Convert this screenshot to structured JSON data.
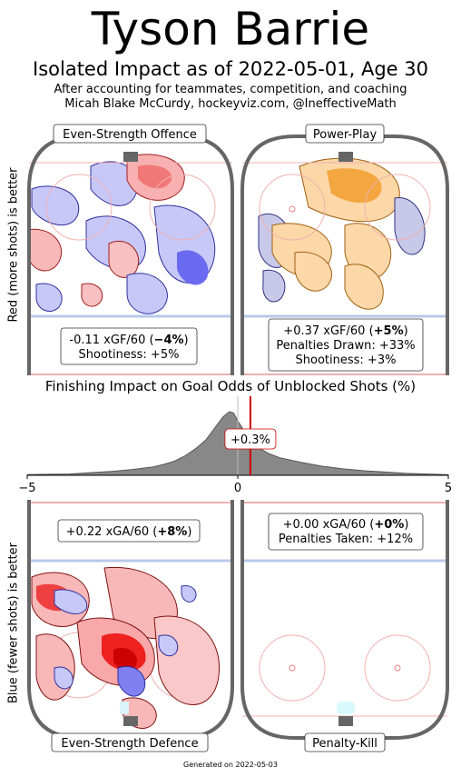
{
  "header": {
    "player_name": "Tyson Barrie",
    "subtitle": "Isolated Impact as of 2022-05-01, Age 30",
    "note_line1": "After accounting for teammates, competition, and coaching",
    "note_line2": "Micah Blake McCurdy, hockeyviz.com, @IneffectiveMath"
  },
  "axis_labels": {
    "top": "Red (more shots) is better",
    "bottom": "Blue (fewer shots) is better"
  },
  "colors": {
    "offence_red": "#f08080",
    "offence_blue": "#6060f0",
    "powerplay_orange": "#f4a640",
    "powerplay_purple": "#9090c8",
    "defence_red": "#ee3030",
    "defence_blue": "#5050e0",
    "rink_border": "#666666",
    "finish_fill": "#888888",
    "finish_marker": "#cc0000"
  },
  "panels": {
    "es_offence": {
      "label": "Even-Strength Offence",
      "stat1_prefix": "-0.11 xGF/60 (",
      "stat1_bold": "−4%",
      "stat1_suffix": ")",
      "stat2": "Shootiness: +5%"
    },
    "power_play": {
      "label": "Power-Play",
      "stat1_prefix": "+0.37 xGF/60 (",
      "stat1_bold": "+5%",
      "stat1_suffix": ")",
      "stat2": "Penalties Drawn: +33%",
      "stat3": "Shootiness: +3%"
    },
    "es_defence": {
      "label": "Even-Strength Defence",
      "stat1_prefix": "+0.22 xGA/60 (",
      "stat1_bold": "+8%",
      "stat1_suffix": ")"
    },
    "penalty_kill": {
      "label": "Penalty-Kill",
      "stat1_prefix": "+0.00 xGA/60 (",
      "stat1_bold": "+0%",
      "stat1_suffix": ")",
      "stat2": "Penalties Taken: +12%"
    }
  },
  "chart_data": {
    "type": "area",
    "title": "Finishing Impact on Goal Odds of Unblocked Shots (%)",
    "xlim": [
      -5,
      5
    ],
    "tick_labels": [
      "−5",
      "0",
      "5"
    ],
    "tick_values": [
      -5,
      0,
      5
    ],
    "marker_value": 0.3,
    "marker_label": "+0.3%",
    "x": [
      -5,
      -4.5,
      -4,
      -3.5,
      -3,
      -2.5,
      -2,
      -1.75,
      -1.5,
      -1.25,
      -1,
      -0.75,
      -0.5,
      -0.35,
      -0.2,
      -0.1,
      0,
      0.25,
      0.5,
      0.75,
      1,
      1.5,
      2,
      2.5,
      3,
      3.5,
      4,
      4.5,
      5
    ],
    "density": [
      0.01,
      0.015,
      0.02,
      0.04,
      0.06,
      0.09,
      0.13,
      0.17,
      0.22,
      0.3,
      0.41,
      0.55,
      0.77,
      0.9,
      0.98,
      0.96,
      0.84,
      0.58,
      0.42,
      0.33,
      0.27,
      0.2,
      0.14,
      0.1,
      0.07,
      0.05,
      0.03,
      0.02,
      0.01
    ]
  },
  "footer": "Generated on 2022-05-03"
}
